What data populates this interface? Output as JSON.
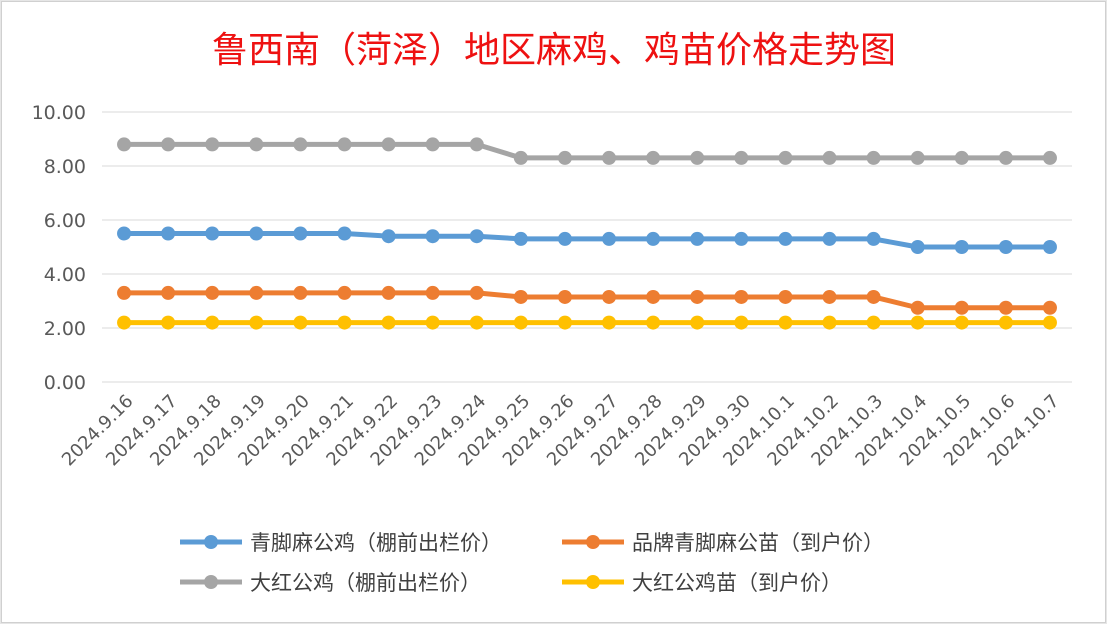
{
  "chart_data": {
    "type": "line",
    "title": "鲁西南（菏泽）地区麻鸡、鸡苗价格走势图",
    "xlabel": "",
    "ylabel": "",
    "ylim": [
      0,
      10
    ],
    "yticks": [
      "0.00",
      "2.00",
      "4.00",
      "6.00",
      "8.00",
      "10.00"
    ],
    "grid": true,
    "legend_position": "bottom",
    "categories": [
      "2024.9.16",
      "2024.9.17",
      "2024.9.18",
      "2024.9.19",
      "2024.9.20",
      "2024.9.21",
      "2024.9.22",
      "2024.9.23",
      "2024.9.24",
      "2024.9.25",
      "2024.9.26",
      "2024.9.27",
      "2024.9.28",
      "2024.9.29",
      "2024.9.30",
      "2024.10.1",
      "2024.10.2",
      "2024.10.3",
      "2024.10.4",
      "2024.10.5",
      "2024.10.6",
      "2024.10.7"
    ],
    "series": [
      {
        "name": "青脚麻公鸡（棚前出栏价）",
        "color": "#5b9bd5",
        "values": [
          5.5,
          5.5,
          5.5,
          5.5,
          5.5,
          5.5,
          5.4,
          5.4,
          5.4,
          5.3,
          5.3,
          5.3,
          5.3,
          5.3,
          5.3,
          5.3,
          5.3,
          5.3,
          5.0,
          5.0,
          5.0,
          5.0
        ]
      },
      {
        "name": "品牌青脚麻公苗（到户价）",
        "color": "#ed7d31",
        "values": [
          3.3,
          3.3,
          3.3,
          3.3,
          3.3,
          3.3,
          3.3,
          3.3,
          3.3,
          3.15,
          3.15,
          3.15,
          3.15,
          3.15,
          3.15,
          3.15,
          3.15,
          3.15,
          2.75,
          2.75,
          2.75,
          2.75
        ]
      },
      {
        "name": "大红公鸡（棚前出栏价）",
        "color": "#a5a5a5",
        "values": [
          8.8,
          8.8,
          8.8,
          8.8,
          8.8,
          8.8,
          8.8,
          8.8,
          8.8,
          8.3,
          8.3,
          8.3,
          8.3,
          8.3,
          8.3,
          8.3,
          8.3,
          8.3,
          8.3,
          8.3,
          8.3,
          8.3
        ]
      },
      {
        "name": "大红公鸡苗（到户价）",
        "color": "#ffc000",
        "values": [
          2.2,
          2.2,
          2.2,
          2.2,
          2.2,
          2.2,
          2.2,
          2.2,
          2.2,
          2.2,
          2.2,
          2.2,
          2.2,
          2.2,
          2.2,
          2.2,
          2.2,
          2.2,
          2.2,
          2.2,
          2.2,
          2.2
        ]
      }
    ]
  }
}
